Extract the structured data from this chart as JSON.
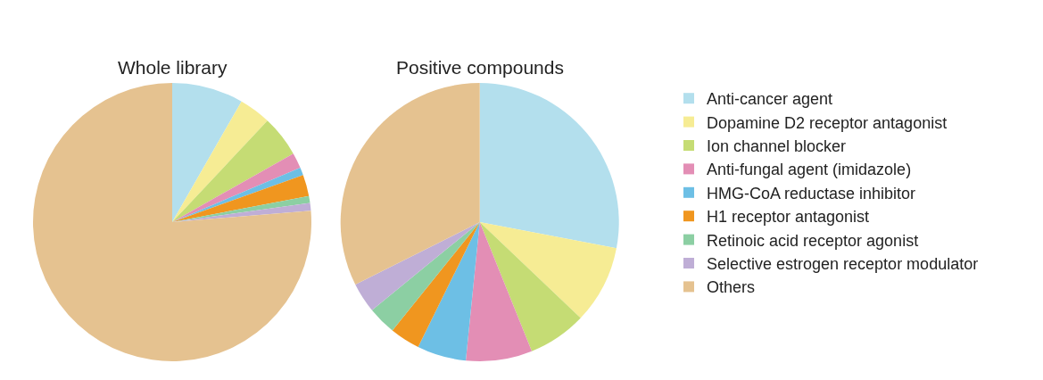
{
  "chart_data": {
    "type": "pie",
    "legend": "right",
    "categories": [
      "Anti-cancer agent",
      "Dopamine D2 receptor antagonist",
      "Ion channel blocker",
      "Anti-fungal agent (imidazole)",
      "HMG-CoA reductase inhibitor",
      "H1 receptor antagonist",
      "Retinoic acid receptor agonist",
      "Selective estrogen receptor modulator",
      "Others"
    ],
    "colors": [
      "#b3dfed",
      "#f6ec94",
      "#c5dc74",
      "#e38eb5",
      "#6dbfe5",
      "#f0961f",
      "#8ccfa3",
      "#bfaed6",
      "#e5c290"
    ],
    "series": [
      {
        "name": "Whole library",
        "values": [
          8.3,
          3.7,
          4.8,
          1.8,
          0.9,
          2.5,
          0.8,
          0.9,
          76.3
        ]
      },
      {
        "name": "Positive compounds",
        "values": [
          28.0,
          9.1,
          6.8,
          7.7,
          5.7,
          3.5,
          3.3,
          3.5,
          32.4
        ]
      }
    ]
  }
}
